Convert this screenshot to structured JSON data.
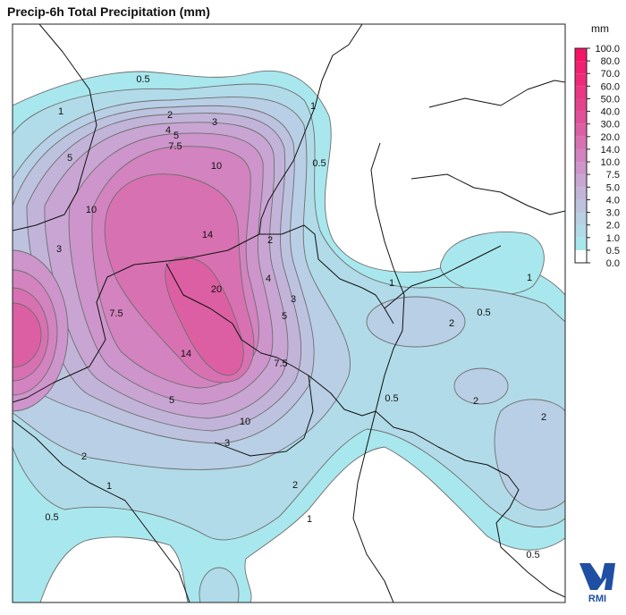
{
  "title": "Precip-6h Total Precipitation (mm)",
  "colorbar": {
    "unit": "mm",
    "labels": [
      "0.0",
      "0.5",
      "1.0",
      "2.0",
      "3.0",
      "4.0",
      "5.0",
      "7.5",
      "10.0",
      "14.0",
      "20.0",
      "30.0",
      "40.0",
      "50.0",
      "60.0",
      "70.0",
      "80.0",
      "100.0"
    ],
    "colors": [
      "#ffffff",
      "#a9e7ee",
      "#b1dbe9",
      "#b8cfe5",
      "#bdc2df",
      "#c2b4d9",
      "#c8a5d3",
      "#cd95cb",
      "#d383bf",
      "#d871b2",
      "#dc5fa4",
      "#e05098",
      "#e4448e",
      "#e83884",
      "#ec2c7a",
      "#f02070",
      "#f41466"
    ]
  },
  "contour_labels": [
    "0.5",
    "1",
    "2",
    "3",
    "4",
    "5",
    "7.5",
    "10",
    "5",
    "10",
    "3",
    "14",
    "20",
    "4",
    "3",
    "5",
    "7.5",
    "7.5",
    "14",
    "5",
    "10",
    "3",
    "2",
    "1",
    "0.5",
    "2",
    "1",
    "1",
    "2",
    "0.5",
    "1",
    "0.5",
    "0.5",
    "2",
    "2",
    "0.5",
    "2",
    "1"
  ],
  "logo": "RMI"
}
